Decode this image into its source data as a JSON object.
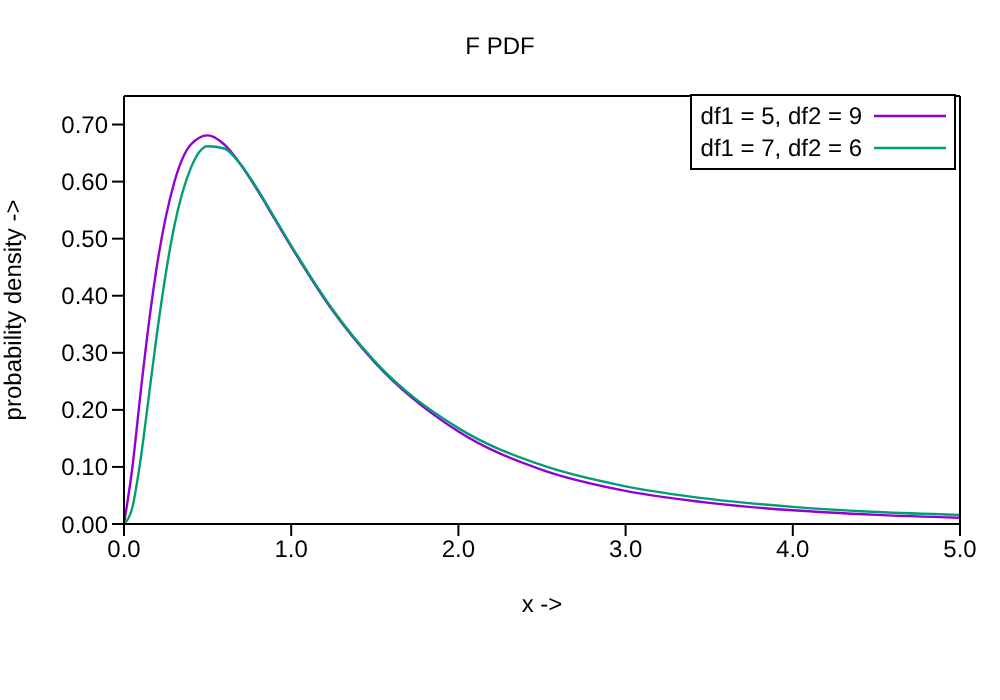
{
  "chart_data": {
    "type": "line",
    "title": "F PDF",
    "xlabel": "x ->",
    "ylabel": "probability density ->",
    "x": [
      0,
      0.05,
      0.1,
      0.15,
      0.2,
      0.3,
      0.4,
      0.5,
      0.6,
      0.7,
      0.8,
      0.9,
      1.0,
      1.25,
      1.5,
      2.0,
      2.5,
      3.0,
      3.5,
      4.0,
      4.5,
      5.0
    ],
    "series": [
      {
        "name": "df1 = 5, df2 = 9",
        "color": "#9400d3",
        "values": [
          0,
          0.099,
          0.232,
          0.355,
          0.458,
          0.598,
          0.665,
          0.681,
          0.665,
          0.629,
          0.584,
          0.535,
          0.486,
          0.373,
          0.283,
          0.162,
          0.095,
          0.058,
          0.037,
          0.024,
          0.016,
          0.011
        ]
      },
      {
        "name": "df1 = 7, df2 = 6",
        "color": "#009e73",
        "values": [
          0,
          0.029,
          0.115,
          0.227,
          0.34,
          0.521,
          0.624,
          0.662,
          0.658,
          0.629,
          0.586,
          0.537,
          0.488,
          0.375,
          0.285,
          0.168,
          0.103,
          0.066,
          0.044,
          0.03,
          0.021,
          0.016
        ]
      }
    ],
    "xlim": [
      0,
      5
    ],
    "xticks": [
      {
        "value": 0,
        "label": "0.0"
      },
      {
        "value": 1,
        "label": "1.0"
      },
      {
        "value": 2,
        "label": "2.0"
      },
      {
        "value": 3,
        "label": "3.0"
      },
      {
        "value": 4,
        "label": "4.0"
      },
      {
        "value": 5,
        "label": "5.0"
      }
    ],
    "ylim": [
      0,
      0.75
    ],
    "yticks": [
      {
        "value": 0,
        "label": "0.00"
      },
      {
        "value": 0.1,
        "label": "0.10"
      },
      {
        "value": 0.2,
        "label": "0.20"
      },
      {
        "value": 0.3,
        "label": "0.30"
      },
      {
        "value": 0.4,
        "label": "0.40"
      },
      {
        "value": 0.5,
        "label": "0.50"
      },
      {
        "value": 0.6,
        "label": "0.60"
      },
      {
        "value": 0.7,
        "label": "0.70"
      }
    ],
    "grid": false,
    "legend": "top right",
    "marker": "none",
    "line_style": "solid"
  }
}
